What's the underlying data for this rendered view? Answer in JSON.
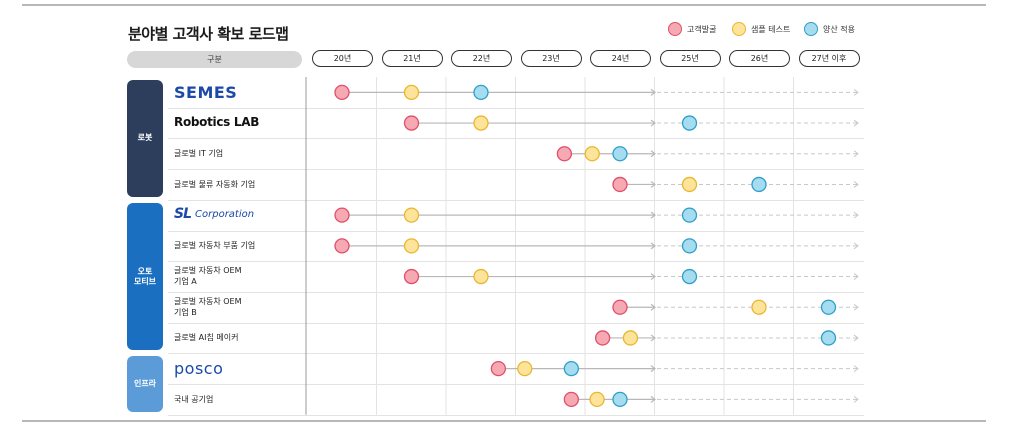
{
  "title": "분야별 고객사 확보 로드맵",
  "legend": [
    {
      "label": "고객발굴",
      "fill": "#f6a8b3",
      "stroke": "#e05068"
    },
    {
      "label": "샘플 테스트",
      "fill": "#fde49a",
      "stroke": "#e8b730"
    },
    {
      "label": "양산 적용",
      "fill": "#a5dcef",
      "stroke": "#2f9fc8"
    }
  ],
  "header_label": "구분",
  "years": [
    "20년",
    "21년",
    "22년",
    "23년",
    "24년",
    "25년",
    "26년",
    "27년 이후"
  ],
  "categories": [
    {
      "label": "로봇",
      "color": "#2c3e5c"
    },
    {
      "label": "오토\n모티브",
      "color": "#1b6fc0"
    },
    {
      "label": "인프라",
      "color": "#5b9bd8"
    }
  ],
  "rows": [
    {
      "label": "SEMES",
      "category": 0,
      "milestones": [
        0,
        1,
        2
      ]
    },
    {
      "label": "Robotics LAB",
      "category": 0,
      "milestones": [
        1,
        2,
        5
      ]
    },
    {
      "label": "글로벌 IT 기업",
      "category": 0,
      "milestones": [
        3.2,
        3.6,
        4.0
      ]
    },
    {
      "label": "글로벌 물류 자동화 기업",
      "category": 0,
      "milestones": [
        4.0,
        5,
        6
      ]
    },
    {
      "label": "SL Corporation",
      "category": 1,
      "milestones": [
        0,
        1,
        5
      ]
    },
    {
      "label": "글로벌 자동차 부품 기업",
      "category": 1,
      "milestones": [
        0,
        1,
        5
      ]
    },
    {
      "label": "글로벌 자동차 OEM\n기업 A",
      "category": 1,
      "milestones": [
        1,
        2,
        5
      ]
    },
    {
      "label": "글로벌 자동차 OEM\n기업 B",
      "category": 1,
      "milestones": [
        4.0,
        6,
        7
      ]
    },
    {
      "label": "글로벌 AI칩 메이커",
      "category": 1,
      "milestones": [
        3.75,
        4.15,
        7
      ]
    },
    {
      "label": "POSCO",
      "category": 2,
      "milestones": [
        2.25,
        2.63,
        3.3
      ]
    },
    {
      "label": "국내 공기업",
      "category": 2,
      "milestones": [
        3.3,
        3.67,
        4.0
      ]
    }
  ],
  "colors": {
    "solid_line": "#b8b8b8",
    "dashed_line": "#c8c8c8",
    "grid": "#e3e3e3"
  }
}
